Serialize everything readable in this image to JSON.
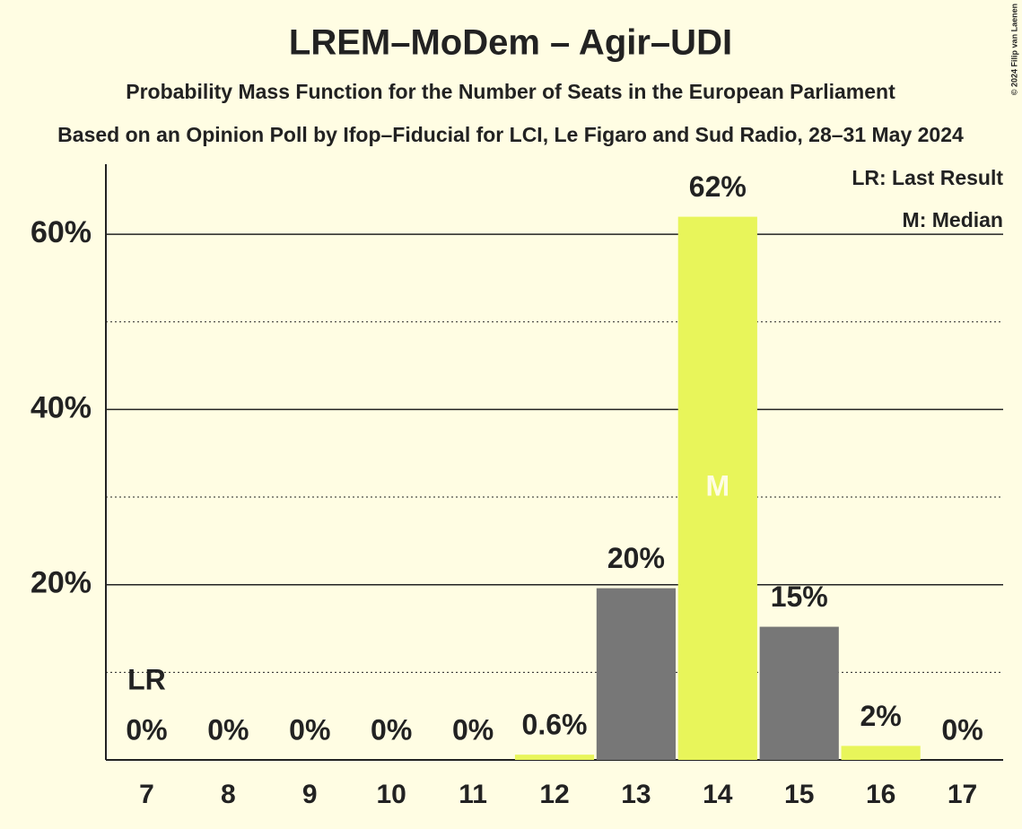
{
  "chart_data": {
    "type": "bar",
    "title": "LREM–MoDem – Agir–UDI",
    "subtitle": "Probability Mass Function for the Number of Seats in the European Parliament",
    "caption": "Based on an Opinion Poll by Ifop–Fiducial for LCI, Le Figaro and Sud Radio, 28–31 May 2024",
    "copyright": "© 2024 Filip van Laenen",
    "categories": [
      7,
      8,
      9,
      10,
      11,
      12,
      13,
      14,
      15,
      16,
      17
    ],
    "values": [
      0,
      0,
      0,
      0,
      0,
      0.6,
      19.6,
      62.0,
      15.2,
      1.6,
      0
    ],
    "value_labels": [
      "0%",
      "0%",
      "0%",
      "0%",
      "0%",
      "0.6%",
      "20%",
      "62%",
      "15%",
      "2%",
      "0%"
    ],
    "colors": [
      "#e8f55a",
      "#777777",
      "#e8f55a",
      "#777777",
      "#e8f55a",
      "#e8f55a",
      "#777777",
      "#e8f55a",
      "#777777",
      "#e8f55a",
      "#777777"
    ],
    "ylim": [
      0,
      68
    ],
    "yticks": [
      {
        "value": 20,
        "label": "20%"
      },
      {
        "value": 40,
        "label": "40%"
      },
      {
        "value": 60,
        "label": "60%"
      }
    ],
    "minor_yticks": [
      10,
      30,
      50
    ],
    "grid": true,
    "annotations": [
      {
        "text": "LR",
        "category": 7
      },
      {
        "text": "M",
        "category": 14
      }
    ],
    "legend": [
      "LR: Last Result",
      "M: Median"
    ]
  }
}
